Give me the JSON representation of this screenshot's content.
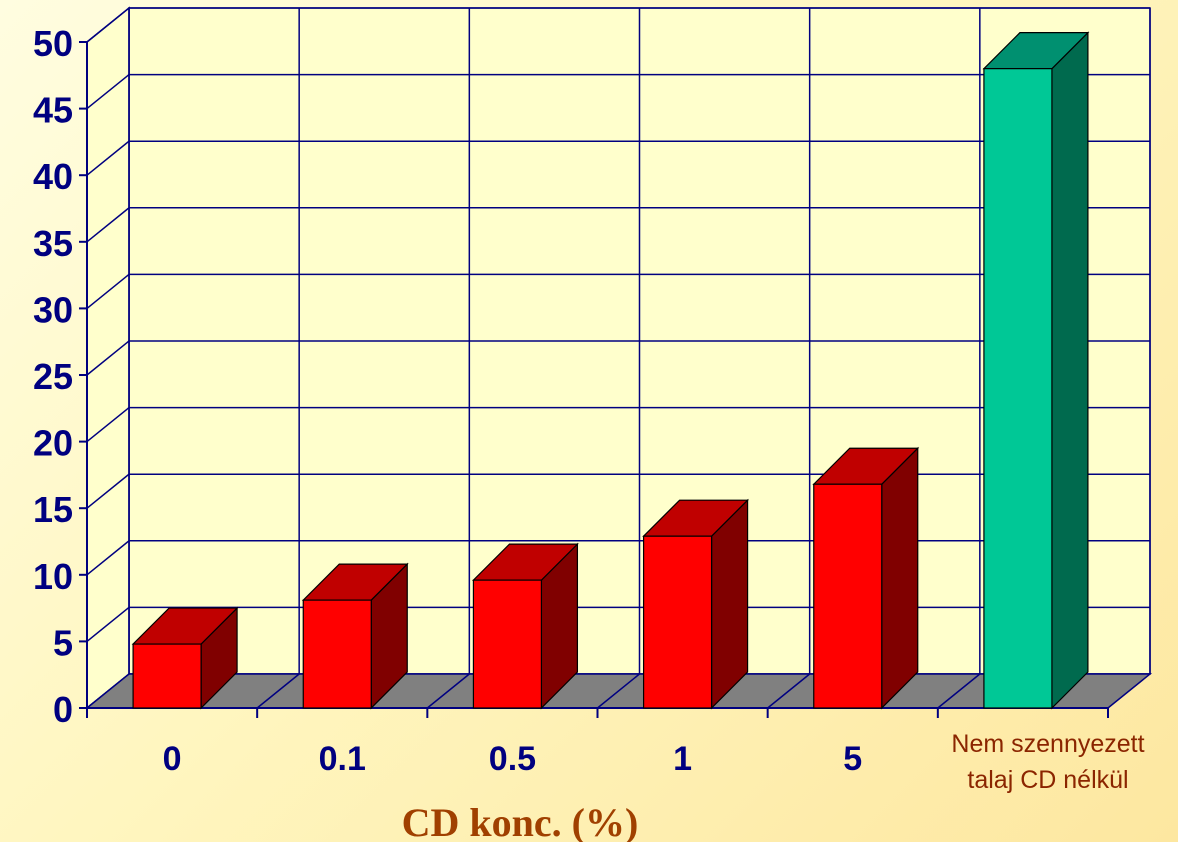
{
  "chart_data": {
    "type": "bar",
    "categories": [
      "0",
      "0.1",
      "0.5",
      "1",
      "5",
      "Nem szennyezett talaj CD nélkül"
    ],
    "category_lines": [
      [
        "0"
      ],
      [
        "0.1"
      ],
      [
        "0.5"
      ],
      [
        "1"
      ],
      [
        "5"
      ],
      [
        "Nem szennyezett",
        "talaj CD nélkül"
      ]
    ],
    "values": [
      4.8,
      8.1,
      9.6,
      12.9,
      16.8,
      48.0
    ],
    "xlabel": "CD konc. (%)",
    "ylabel": "",
    "ylim": [
      0,
      50
    ],
    "yticks": [
      "0",
      "5",
      "10",
      "15",
      "20",
      "25",
      "30",
      "35",
      "40",
      "45",
      "50"
    ],
    "grid": true,
    "style": "3d",
    "colors": {
      "bar_front": "#ff0000",
      "bar_top": "#c00000",
      "bar_side": "#800000",
      "last_bar_front": "#00c896",
      "last_bar_top": "#009070",
      "last_bar_side": "#006a4e",
      "floor": "#808080",
      "wall": "#ffffcc",
      "grid": "#000080",
      "tick_label": "#000080",
      "xlabel": "#a04000",
      "last_category_label": "#8b2500"
    }
  }
}
